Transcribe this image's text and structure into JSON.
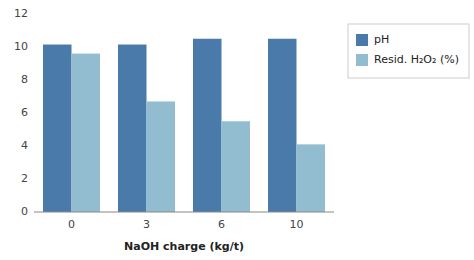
{
  "chart_data": {
    "type": "bar",
    "categories": [
      "0",
      "3",
      "6",
      "10"
    ],
    "series": [
      {
        "name": "pH",
        "color": "#4a7aaa",
        "values": [
          10.15,
          10.15,
          10.5,
          10.5
        ]
      },
      {
        "name": "Resid. H₂O₂ (%)",
        "color": "#92bdd0",
        "values": [
          9.6,
          6.7,
          5.5,
          4.1
        ]
      }
    ],
    "xlabel": "NaOH charge (kg/t)",
    "ylim": [
      0,
      12
    ],
    "yticks": [
      0,
      2,
      4,
      6,
      8,
      10,
      12
    ],
    "grid": false,
    "legend": "right"
  }
}
